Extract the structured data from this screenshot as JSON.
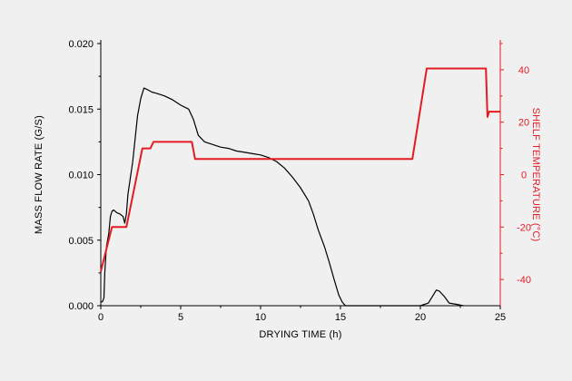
{
  "chart_data": {
    "type": "line",
    "title": "",
    "xlabel": "DRYING TIME (h)",
    "ylabel": "MASS FLOW RATE (G/S)",
    "y2label": "SHELF TEMPERATURE (°C)",
    "xlim": [
      0,
      25
    ],
    "ylim": [
      0,
      0.02
    ],
    "y2lim": [
      -50,
      50
    ],
    "x_ticks": [
      "0",
      "5",
      "10",
      "15",
      "20",
      "25"
    ],
    "y_ticks": [
      "0.000",
      "0.005",
      "0.010",
      "0.015",
      "0.020"
    ],
    "y2_ticks": [
      "-40",
      "-20",
      "0",
      "20",
      "40"
    ],
    "grid": false,
    "legend": "none",
    "colors": {
      "mass_flow": "#000000",
      "shelf_temperature": "#e31b23",
      "background": "#f0f0f0"
    },
    "series": [
      {
        "key": "mass_flow",
        "axis": "left",
        "x": [
          0.0,
          0.1,
          0.2,
          0.25,
          0.35,
          0.5,
          0.6,
          0.7,
          0.8,
          1.0,
          1.2,
          1.4,
          1.5,
          1.6,
          1.7,
          2.0,
          2.3,
          2.5,
          2.7,
          2.9,
          3.2,
          3.5,
          4.0,
          4.5,
          5.0,
          5.5,
          5.8,
          6.1,
          6.5,
          7.0,
          7.5,
          8.0,
          8.5,
          9.0,
          9.5,
          10.0,
          10.5,
          11.0,
          11.5,
          12.0,
          12.5,
          13.0,
          13.3,
          13.6,
          14.0,
          14.3,
          14.6,
          14.9,
          15.1,
          15.3,
          16.0,
          17.0,
          18.0,
          19.0,
          20.0,
          20.5,
          20.8,
          21.0,
          21.2,
          21.5,
          21.8,
          22.3,
          22.7
        ],
        "values": [
          0.0003,
          0.0003,
          0.0006,
          0.0025,
          0.0045,
          0.0055,
          0.0068,
          0.0072,
          0.0073,
          0.0071,
          0.007,
          0.0068,
          0.0063,
          0.007,
          0.0085,
          0.011,
          0.0145,
          0.0158,
          0.0166,
          0.0165,
          0.0163,
          0.0162,
          0.016,
          0.0157,
          0.0153,
          0.015,
          0.0142,
          0.013,
          0.0125,
          0.0123,
          0.0121,
          0.012,
          0.0118,
          0.0117,
          0.0116,
          0.0115,
          0.0113,
          0.011,
          0.0105,
          0.0098,
          0.009,
          0.008,
          0.007,
          0.0058,
          0.0045,
          0.0033,
          0.002,
          0.0008,
          0.0003,
          0.0,
          0.0,
          0.0,
          0.0,
          0.0,
          0.0,
          0.0002,
          0.0008,
          0.0012,
          0.0011,
          0.0007,
          0.0002,
          0.0001,
          0.0
        ]
      },
      {
        "key": "shelf_temperature",
        "axis": "right",
        "x": [
          0.0,
          0.7,
          1.6,
          2.6,
          3.1,
          3.3,
          5.7,
          5.9,
          19.5,
          20.4,
          24.1,
          24.2,
          24.3,
          25.0
        ],
        "values": [
          -37,
          -20,
          -20,
          10,
          10,
          12.5,
          12.5,
          6,
          6,
          40.5,
          40.5,
          22,
          24,
          24
        ]
      }
    ]
  }
}
